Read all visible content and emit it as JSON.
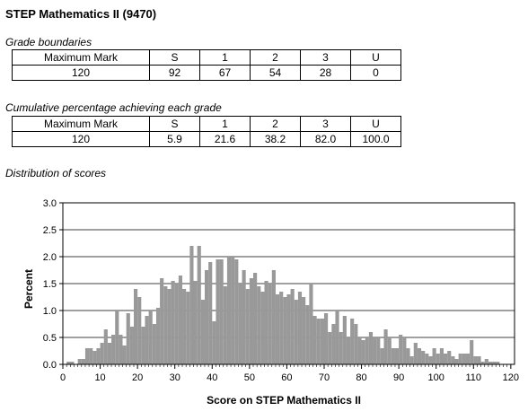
{
  "title": "STEP Mathematics II (9470)",
  "grade_boundaries": {
    "heading": "Grade boundaries",
    "headers": [
      "Maximum Mark",
      "S",
      "1",
      "2",
      "3",
      "U"
    ],
    "values": [
      "120",
      "92",
      "67",
      "54",
      "28",
      "0"
    ]
  },
  "cumulative": {
    "heading": "Cumulative percentage achieving each grade",
    "headers": [
      "Maximum Mark",
      "S",
      "1",
      "2",
      "3",
      "U"
    ],
    "values": [
      "120",
      "5.9",
      "21.6",
      "38.2",
      "82.0",
      "100.0"
    ]
  },
  "distribution_heading": "Distribution of scores",
  "colors": {
    "bar": "#999999",
    "axis": "#000000",
    "grid": "#000000"
  },
  "chart_data": {
    "type": "bar",
    "xlabel": "Score on STEP Mathematics II",
    "ylabel": "Percent",
    "xlim": [
      0,
      121
    ],
    "ylim": [
      0,
      3.0
    ],
    "xticks": [
      "0",
      "10",
      "20",
      "30",
      "40",
      "50",
      "60",
      "70",
      "80",
      "90",
      "100",
      "110",
      "120"
    ],
    "yticks": [
      "0.0",
      "0.5",
      "1.0",
      "1.5",
      "2.0",
      "2.5",
      "3.0"
    ],
    "grid": "horizontal",
    "x": [
      0,
      1,
      2,
      3,
      4,
      5,
      6,
      7,
      8,
      9,
      10,
      11,
      12,
      13,
      14,
      15,
      16,
      17,
      18,
      19,
      20,
      21,
      22,
      23,
      24,
      25,
      26,
      27,
      28,
      29,
      30,
      31,
      32,
      33,
      34,
      35,
      36,
      37,
      38,
      39,
      40,
      41,
      42,
      43,
      44,
      45,
      46,
      47,
      48,
      49,
      50,
      51,
      52,
      53,
      54,
      55,
      56,
      57,
      58,
      59,
      60,
      61,
      62,
      63,
      64,
      65,
      66,
      67,
      68,
      69,
      70,
      71,
      72,
      73,
      74,
      75,
      76,
      77,
      78,
      79,
      80,
      81,
      82,
      83,
      84,
      85,
      86,
      87,
      88,
      89,
      90,
      91,
      92,
      93,
      94,
      95,
      96,
      97,
      98,
      99,
      100,
      101,
      102,
      103,
      104,
      105,
      106,
      107,
      108,
      109,
      110,
      111,
      112,
      113,
      114,
      115,
      116,
      117,
      118,
      119,
      120
    ],
    "values": [
      0,
      0.05,
      0.05,
      0,
      0.1,
      0.1,
      0.3,
      0.3,
      0.25,
      0.3,
      0.4,
      0.65,
      0.4,
      0.55,
      1.0,
      0.55,
      0.35,
      0.95,
      0.7,
      1.4,
      1.25,
      0.7,
      0.9,
      1.0,
      0.75,
      1.05,
      1.6,
      1.45,
      1.4,
      1.55,
      1.5,
      1.65,
      1.4,
      1.35,
      2.2,
      1.55,
      2.2,
      1.2,
      1.75,
      1.9,
      0.8,
      1.95,
      1.95,
      1.45,
      2.0,
      2.0,
      1.95,
      1.5,
      1.75,
      1.4,
      1.6,
      1.7,
      1.45,
      1.35,
      1.55,
      1.5,
      1.75,
      1.3,
      1.35,
      1.25,
      1.3,
      1.4,
      1.2,
      1.35,
      1.25,
      1.1,
      1.5,
      0.9,
      0.85,
      0.85,
      0.95,
      0.6,
      0.75,
      1.0,
      0.6,
      0.9,
      0.5,
      0.85,
      0.75,
      0.5,
      0.45,
      0.5,
      0.6,
      0.5,
      0.5,
      0.3,
      0.65,
      0.5,
      0.3,
      0.3,
      0.55,
      0.5,
      0.3,
      0.15,
      0.4,
      0.3,
      0.25,
      0.2,
      0.15,
      0.3,
      0.2,
      0.3,
      0.2,
      0.25,
      0.15,
      0.1,
      0.2,
      0.2,
      0.2,
      0.45,
      0.15,
      0.15,
      0.05,
      0.1,
      0.05,
      0.05,
      0.05,
      0,
      0,
      0,
      0
    ]
  }
}
